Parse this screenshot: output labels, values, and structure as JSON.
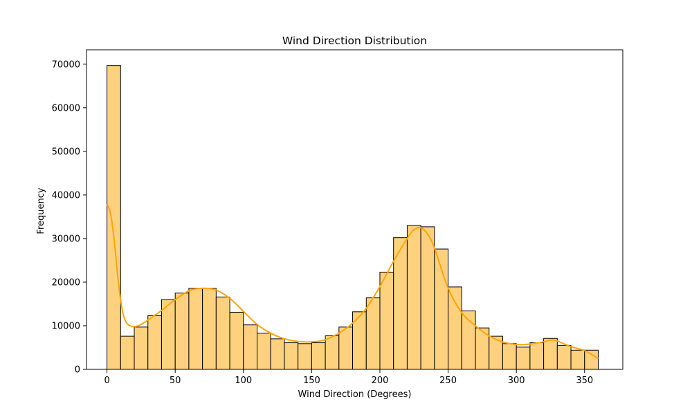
{
  "chart_data": {
    "type": "bar",
    "title": "Wind Direction Distribution",
    "xlabel": "Wind Direction (Degrees)",
    "ylabel": "Frequency",
    "xlim": [
      -15,
      378
    ],
    "ylim": [
      0,
      73300
    ],
    "xticks": [
      0,
      50,
      100,
      150,
      200,
      250,
      300,
      350
    ],
    "yticks": [
      0,
      10000,
      20000,
      30000,
      40000,
      50000,
      60000,
      70000
    ],
    "bin_width": 10,
    "bins": [
      {
        "x0": 0,
        "x1": 10,
        "count": 69700
      },
      {
        "x0": 10,
        "x1": 20,
        "count": 7600
      },
      {
        "x0": 20,
        "x1": 30,
        "count": 9700
      },
      {
        "x0": 30,
        "x1": 40,
        "count": 12300
      },
      {
        "x0": 40,
        "x1": 50,
        "count": 16000
      },
      {
        "x0": 50,
        "x1": 60,
        "count": 17500
      },
      {
        "x0": 60,
        "x1": 70,
        "count": 18600
      },
      {
        "x0": 70,
        "x1": 80,
        "count": 18600
      },
      {
        "x0": 80,
        "x1": 90,
        "count": 16600
      },
      {
        "x0": 90,
        "x1": 100,
        "count": 13100
      },
      {
        "x0": 100,
        "x1": 110,
        "count": 10200
      },
      {
        "x0": 110,
        "x1": 120,
        "count": 8300
      },
      {
        "x0": 120,
        "x1": 130,
        "count": 7000
      },
      {
        "x0": 130,
        "x1": 140,
        "count": 6100
      },
      {
        "x0": 140,
        "x1": 150,
        "count": 5900
      },
      {
        "x0": 150,
        "x1": 160,
        "count": 6100
      },
      {
        "x0": 160,
        "x1": 170,
        "count": 7700
      },
      {
        "x0": 170,
        "x1": 180,
        "count": 9700
      },
      {
        "x0": 180,
        "x1": 190,
        "count": 13200
      },
      {
        "x0": 190,
        "x1": 200,
        "count": 16400
      },
      {
        "x0": 200,
        "x1": 210,
        "count": 22300
      },
      {
        "x0": 210,
        "x1": 220,
        "count": 30200
      },
      {
        "x0": 220,
        "x1": 230,
        "count": 33000
      },
      {
        "x0": 230,
        "x1": 240,
        "count": 32700
      },
      {
        "x0": 240,
        "x1": 250,
        "count": 27600
      },
      {
        "x0": 250,
        "x1": 260,
        "count": 18900
      },
      {
        "x0": 260,
        "x1": 270,
        "count": 13400
      },
      {
        "x0": 270,
        "x1": 280,
        "count": 9500
      },
      {
        "x0": 280,
        "x1": 290,
        "count": 7600
      },
      {
        "x0": 290,
        "x1": 300,
        "count": 5900
      },
      {
        "x0": 300,
        "x1": 310,
        "count": 5100
      },
      {
        "x0": 310,
        "x1": 320,
        "count": 6100
      },
      {
        "x0": 320,
        "x1": 330,
        "count": 7100
      },
      {
        "x0": 330,
        "x1": 340,
        "count": 5500
      },
      {
        "x0": 340,
        "x1": 350,
        "count": 4400
      },
      {
        "x0": 350,
        "x1": 360,
        "count": 4400
      }
    ],
    "kde": {
      "x": [
        0,
        2,
        4,
        6,
        8,
        10,
        12,
        15,
        20,
        25,
        30,
        40,
        50,
        60,
        70,
        80,
        90,
        100,
        110,
        120,
        130,
        140,
        150,
        160,
        170,
        180,
        190,
        200,
        210,
        220,
        225,
        230,
        235,
        240,
        250,
        260,
        270,
        280,
        290,
        300,
        310,
        320,
        325,
        330,
        340,
        350,
        360
      ],
      "y": [
        37800,
        36500,
        33000,
        27500,
        21000,
        16000,
        12500,
        10400,
        9800,
        10300,
        11300,
        13500,
        16000,
        18000,
        18600,
        18200,
        16300,
        13300,
        10300,
        8300,
        7000,
        6400,
        6300,
        6800,
        8300,
        10600,
        14000,
        19000,
        24800,
        30000,
        32000,
        32500,
        31000,
        27800,
        18600,
        13000,
        10000,
        7700,
        6300,
        5700,
        5800,
        6300,
        6700,
        6500,
        5200,
        4300,
        2500
      ]
    },
    "colors": {
      "bar_fill": "#fed17f",
      "bar_edge": "#000000",
      "kde_line": "#ffa500",
      "axes": "#000000",
      "background": "#ffffff"
    },
    "grid": false,
    "legend": "none"
  }
}
